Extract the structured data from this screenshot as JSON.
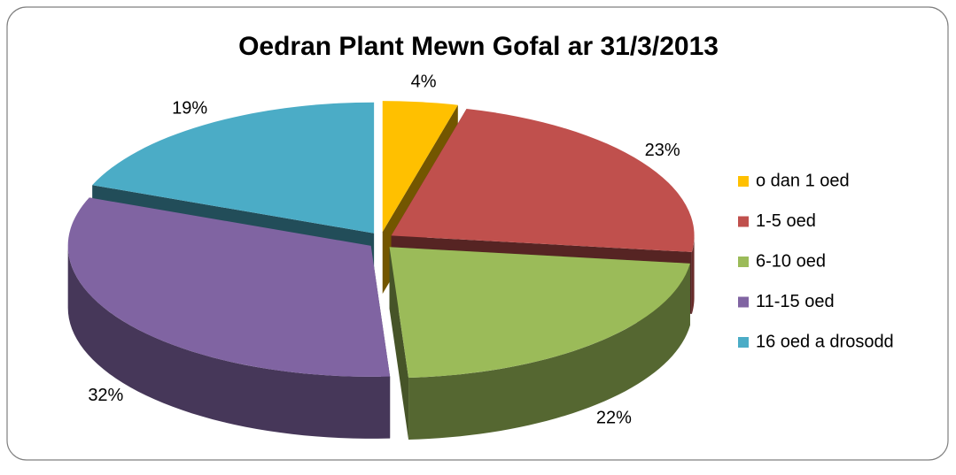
{
  "chart_data": {
    "type": "pie",
    "title": "Oedran Plant Mewn Gofal ar 31/3/2013",
    "categories": [
      "o dan 1 oed",
      "1-5 oed",
      "6-10 oed",
      "11-15 oed",
      "16 oed a drosodd"
    ],
    "values": [
      4,
      23,
      22,
      32,
      19
    ],
    "value_labels": [
      "4%",
      "23%",
      "22%",
      "32%",
      "19%"
    ],
    "colors": [
      "#ffc000",
      "#c0504d",
      "#9bbb59",
      "#8064a2",
      "#4bacc6"
    ],
    "legend": "right"
  }
}
